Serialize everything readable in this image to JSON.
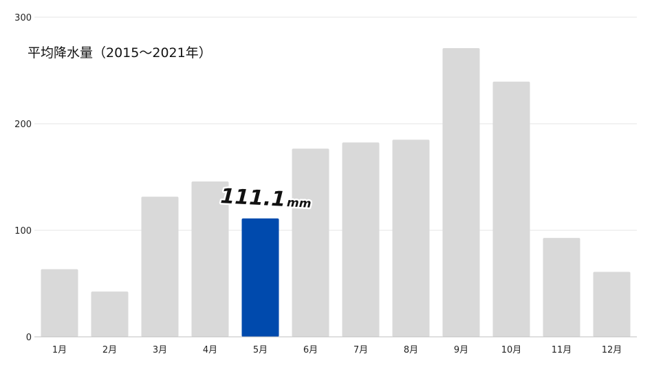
{
  "chart_data": {
    "type": "bar",
    "title": "平均降水量（2015〜2021年）",
    "categories": [
      "1月",
      "2月",
      "3月",
      "4月",
      "5月",
      "6月",
      "7月",
      "8月",
      "9月",
      "10月",
      "11月",
      "12月"
    ],
    "values": [
      63.5,
      42.5,
      131.5,
      145.8,
      111.1,
      176.6,
      182.4,
      185.0,
      271.0,
      239.5,
      92.8,
      61.0
    ],
    "ylim": [
      0,
      300
    ],
    "yticks": [
      0,
      100,
      200,
      300
    ],
    "grid": true,
    "highlight": {
      "index": 4,
      "value_text": "111.1",
      "unit": "mm"
    },
    "colors": {
      "default": "#d9d9d9",
      "highlight": "#004aad"
    }
  }
}
